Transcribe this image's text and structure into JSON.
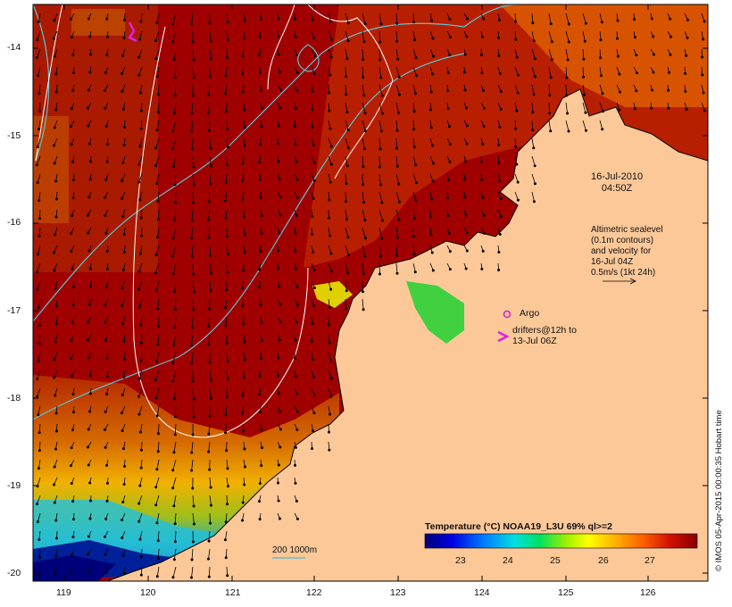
{
  "map": {
    "date_line1": "16-Jul-2010",
    "date_line2": "04:50Z",
    "legend_lines": [
      "Altimetric sealevel",
      "(0.1m contours)",
      "and velocity for",
      "16-Jul 04Z",
      "0.5m/s (1kt 24h)"
    ],
    "argo_label": "Argo",
    "drifter_label_line1": "drifters@12h to",
    "drifter_label_line2": "13-Jul 06Z",
    "scale_label": "200  1000m",
    "colorbar_title": "Temperature (°C) NOAA19_L3U 69% ql>=2",
    "colorbar_ticks": [
      "23",
      "24",
      "25",
      "26",
      "27"
    ],
    "colorbar_colors": [
      "#00007a",
      "#0000d0",
      "#0060ff",
      "#00c0ff",
      "#00e0a0",
      "#40e040",
      "#c0f000",
      "#ffff00",
      "#ffc000",
      "#ff8000",
      "#e04000",
      "#b00000",
      "#8a0000"
    ],
    "side_note": "© IMOS 05-Apr-2015 00:00:35 Hobart time",
    "lon_ticks": [
      "119",
      "120",
      "121",
      "122",
      "123",
      "124",
      "125",
      "126"
    ],
    "lat_ticks": [
      "-14",
      "-15",
      "-16",
      "-17",
      "-18",
      "-19",
      "-20"
    ],
    "colors": {
      "land": "#fcc898",
      "sea_warm": "#a00000",
      "arrow": "#000000",
      "contour": "#60c0d0",
      "isobath": "#ffffff",
      "argo": "#d020d0"
    }
  }
}
